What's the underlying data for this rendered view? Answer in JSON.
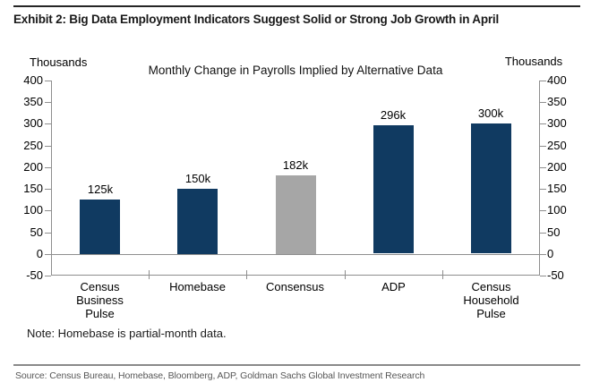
{
  "exhibit": {
    "title": "Exhibit 2: Big Data Employment Indicators Suggest Solid or Strong Job Growth in April"
  },
  "chart_data": {
    "type": "bar",
    "title": "Monthly Change in Payrolls Implied by Alternative Data",
    "categories": [
      "Census\nBusiness\nPulse",
      "Homebase",
      "Consensus",
      "ADP",
      "Census\nHousehold\nPulse"
    ],
    "values": [
      125,
      150,
      182,
      296,
      300
    ],
    "bar_labels": [
      "125k",
      "150k",
      "182k",
      "296k",
      "300k"
    ],
    "bar_colors": [
      "#103a61",
      "#103a61",
      "#a6a6a6",
      "#103a61",
      "#103a61"
    ],
    "unit_label_left": "Thousands",
    "unit_label_right": "Thousands",
    "ylim": [
      -50,
      400
    ],
    "ytick_step": 50,
    "grid": false,
    "legend": "none",
    "zero_line": true
  },
  "note": "Note: Homebase is partial-month data.",
  "source": "Source: Census Bureau, Homebase, Bloomberg, ADP, Goldman Sachs Global Investment Research",
  "colors": {
    "bar_navy": "#103a61",
    "bar_gray": "#a6a6a6",
    "axis_line": "#8e8e8e",
    "text": "#000000",
    "source_text": "#575757"
  }
}
